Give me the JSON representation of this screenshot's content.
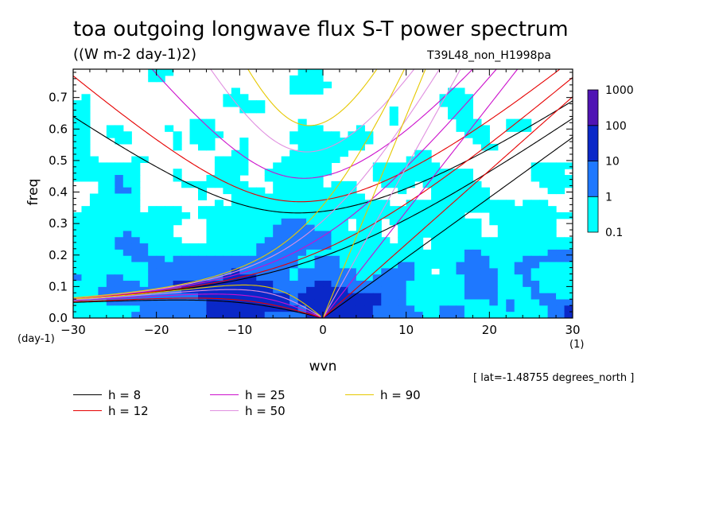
{
  "page": {
    "title": "toa outgoing longwave flux S-T power spectrum",
    "units": "((W m-2 day-1)2)",
    "run_name": "T39L48_non_H1998pa",
    "location_note": "[ lat=-1.48755 degrees_north ]"
  },
  "chart_data": {
    "type": "heatmap",
    "title": "toa outgoing longwave flux S-T power spectrum",
    "subtitle": "((W m-2 day-1)2)",
    "xlabel": "wvn",
    "ylabel": "freq",
    "x_unit_label": "(1)",
    "y_unit_label": "(day-1)",
    "xlim": [
      -30,
      30
    ],
    "ylim": [
      0,
      0.79
    ],
    "x_ticks": [
      -30,
      -20,
      -10,
      0,
      10,
      20,
      30
    ],
    "x_tick_labels": [
      "−30",
      "−20",
      "−10",
      "0",
      "10",
      "20",
      "30"
    ],
    "y_ticks": [
      0.0,
      0.1,
      0.2,
      0.3,
      0.4,
      0.5,
      0.6,
      0.7
    ],
    "y_tick_labels": [
      "0.0",
      "0.1",
      "0.2",
      "0.3",
      "0.4",
      "0.5",
      "0.6",
      "0.7"
    ],
    "colorbar": {
      "levels": [
        0.1,
        1,
        10,
        100,
        1000
      ],
      "labels": [
        "0.1",
        "1",
        "10",
        "100",
        "1000"
      ],
      "colors": [
        "#00ffff",
        "#1e78ff",
        "#0a28c8",
        "#5014b4"
      ]
    },
    "dispersion_curves": [
      {
        "name": "h =  8",
        "h": 8,
        "color": "#000000"
      },
      {
        "name": "h = 12",
        "h": 12,
        "color": "#e60000"
      },
      {
        "name": "h = 25",
        "h": 25,
        "color": "#cc10cc"
      },
      {
        "name": "h = 50",
        "h": 50,
        "color": "#e090e0"
      },
      {
        "name": "h = 90",
        "h": 90,
        "color": "#e6c800"
      }
    ]
  }
}
